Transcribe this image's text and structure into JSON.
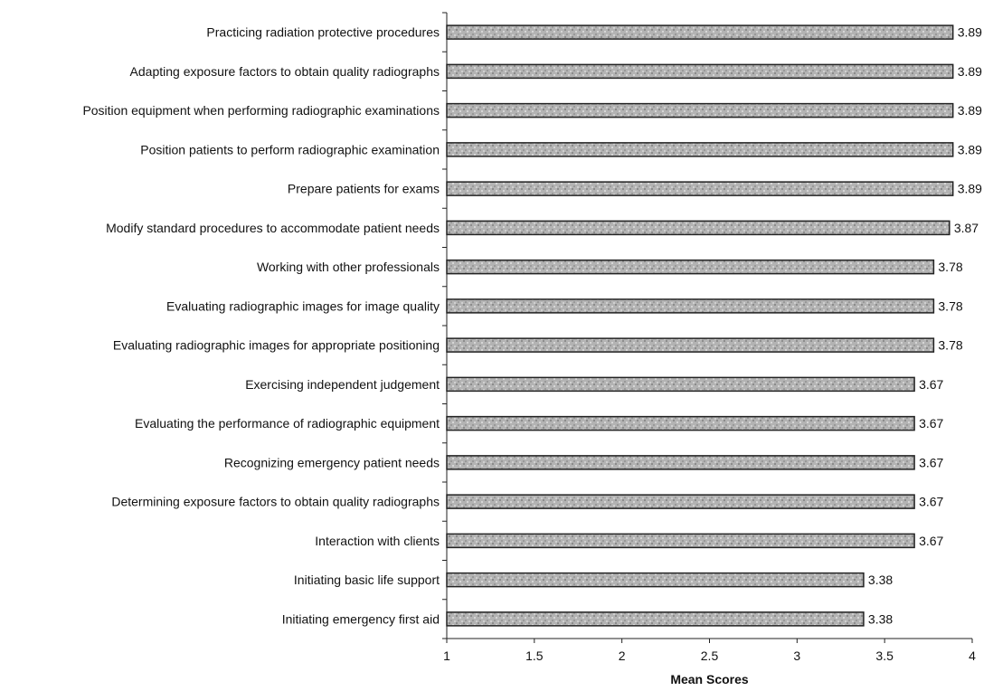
{
  "chart_data": {
    "type": "bar",
    "orientation": "horizontal",
    "categories": [
      "Practicing radiation protective procedures",
      "Adapting exposure factors to obtain quality radiographs",
      "Position equipment when performing radiographic examinations",
      "Position patients to perform radiographic examination",
      "Prepare patients for exams",
      "Modify standard procedures to accommodate patient needs",
      "Working with other professionals",
      "Evaluating radiographic images for image quality",
      "Evaluating radiographic images for appropriate positioning",
      "Exercising independent judgement",
      "Evaluating the performance of radiographic equipment",
      "Recognizing emergency patient needs",
      "Determining exposure factors to obtain quality radiographs",
      "Interaction with clients",
      "Initiating basic life support",
      "Initiating emergency first aid"
    ],
    "values": [
      3.89,
      3.89,
      3.89,
      3.89,
      3.89,
      3.87,
      3.78,
      3.78,
      3.78,
      3.67,
      3.67,
      3.67,
      3.67,
      3.67,
      3.38,
      3.38
    ],
    "value_labels": [
      "3.89",
      "3.89",
      "3.89",
      "3.89",
      "3.89",
      "3.87",
      "3.78",
      "3.78",
      "3.78",
      "3.67",
      "3.67",
      "3.67",
      "3.67",
      "3.67",
      "3.38",
      "3.38"
    ],
    "xlabel": "Mean Scores",
    "ylabel": "",
    "xlim": [
      1,
      4
    ],
    "xticks": [
      1,
      1.5,
      2,
      2.5,
      3,
      3.5,
      4
    ],
    "xtick_labels": [
      "1",
      "1.5",
      "2",
      "2.5",
      "3",
      "3.5",
      "4"
    ],
    "grid": false,
    "legend": "none",
    "bar_color": "#a9a9a9",
    "bar_edge_color": "#222222"
  }
}
